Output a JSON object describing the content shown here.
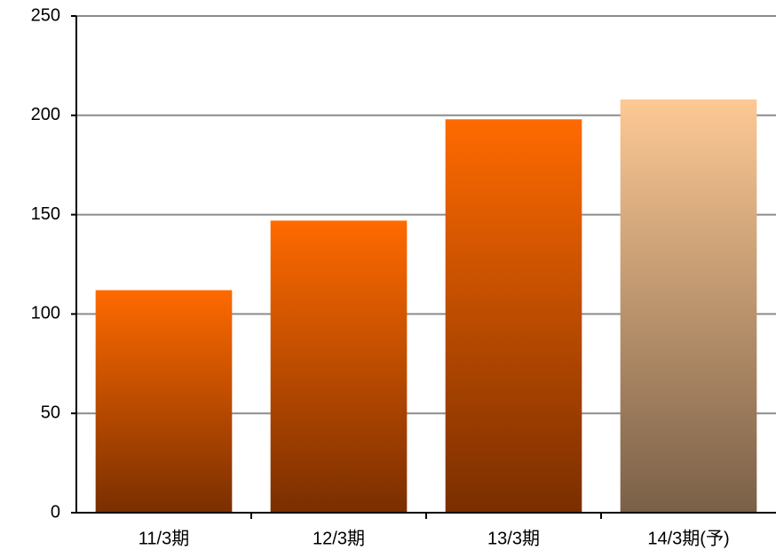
{
  "chart_data": {
    "type": "bar",
    "categories": [
      "11/3期",
      "12/3期",
      "13/3期",
      "14/3期(予)"
    ],
    "values": [
      112,
      147,
      198,
      208
    ],
    "colors": [
      "#ff6a00",
      "#ff6a00",
      "#ff6a00",
      "#fdc994"
    ],
    "colors_bottom": [
      "#7a2e00",
      "#7a2e00",
      "#7a2e00",
      "#7a6048"
    ],
    "ylim": [
      0,
      250
    ],
    "yticks": [
      0,
      50,
      100,
      150,
      200,
      250
    ],
    "grid": true
  }
}
